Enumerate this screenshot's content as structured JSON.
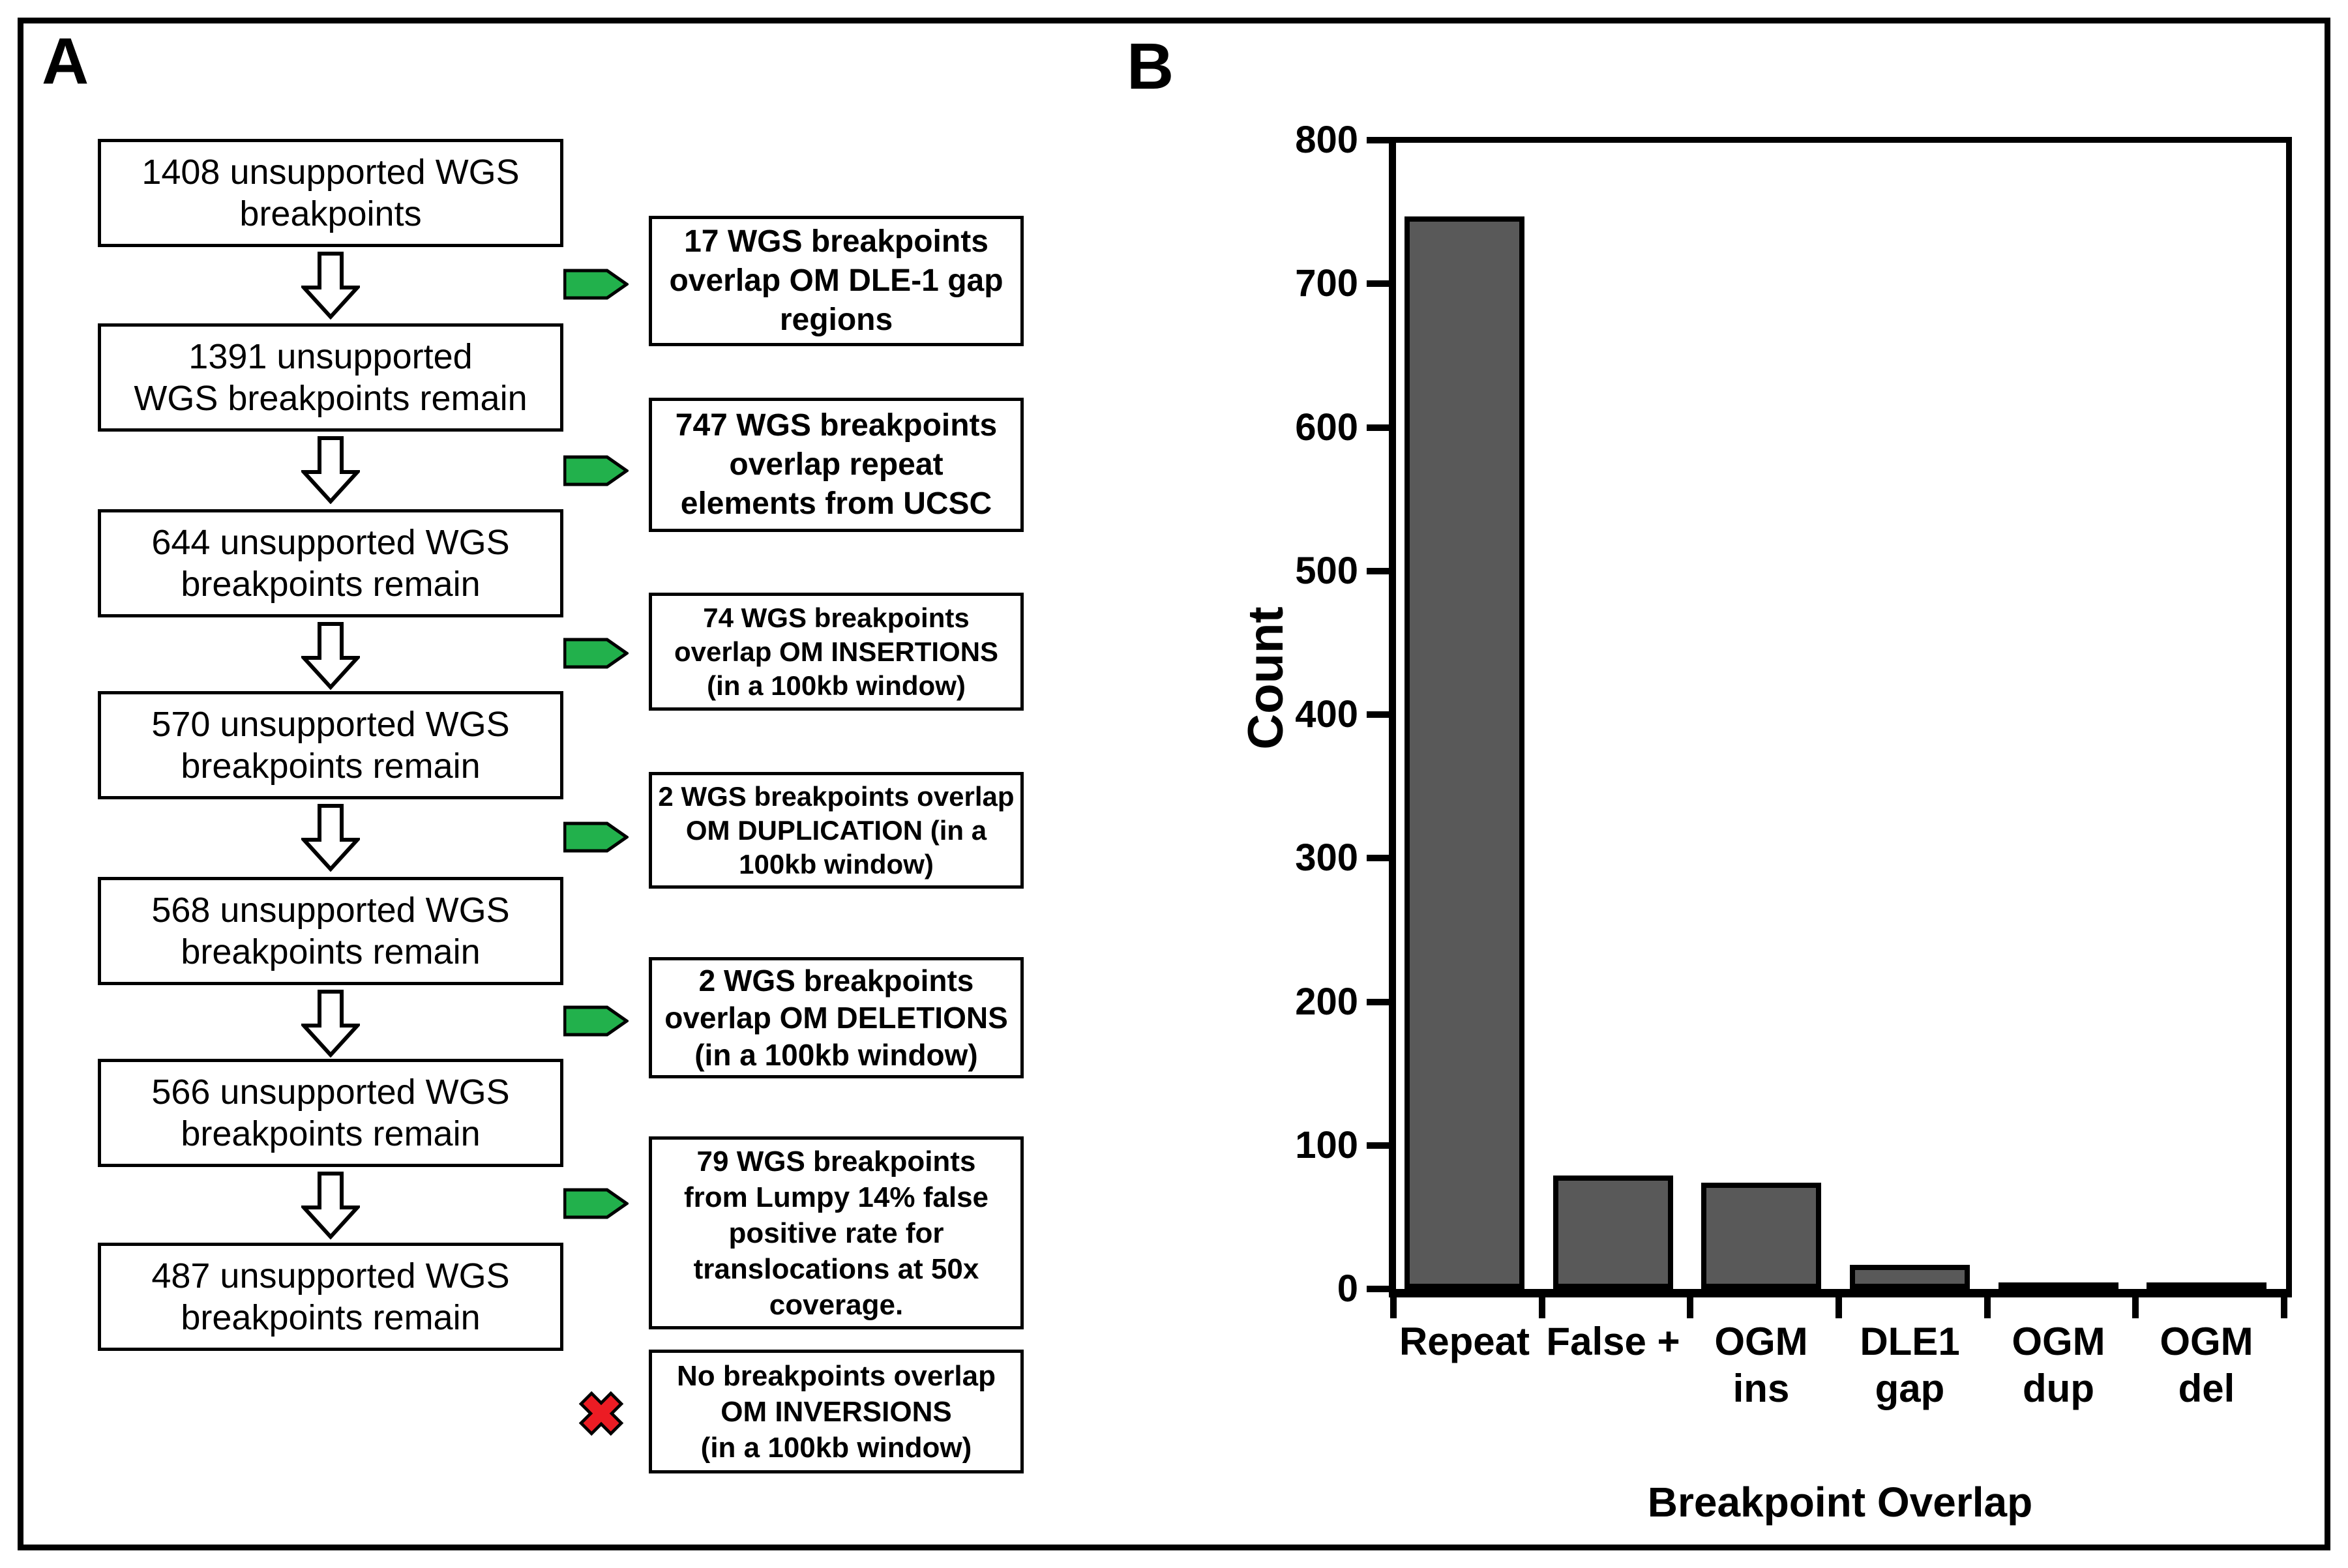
{
  "figure": {
    "panel_a_label": "A",
    "panel_b_label": "B"
  },
  "flowchart": {
    "main_boxes": [
      "1408 unsupported WGS\nbreakpoints",
      "1391 unsupported\nWGS breakpoints remain",
      "644 unsupported WGS\nbreakpoints remain",
      "570 unsupported WGS\nbreakpoints remain",
      "568 unsupported WGS\nbreakpoints remain",
      "566 unsupported WGS\nbreakpoints remain",
      "487 unsupported WGS\nbreakpoints remain"
    ],
    "side_boxes": [
      "17 WGS breakpoints\noverlap OM DLE-1 gap\nregions",
      "747 WGS breakpoints\noverlap repeat\nelements from UCSC",
      "74 WGS breakpoints\noverlap OM INSERTIONS\n(in a 100kb window)",
      "2 WGS breakpoints overlap\nOM DUPLICATION (in a\n100kb window)",
      "2 WGS breakpoints\noverlap OM DELETIONS\n(in a 100kb window)",
      "79 WGS breakpoints\nfrom Lumpy 14% false\npositive rate for\ntranslocations at 50x\ncoverage.",
      "No breakpoints overlap\nOM INVERSIONS\n(in a 100kb window)"
    ],
    "green_arrow_color": "#22B14C",
    "red_x_color": "#EC1C24"
  },
  "chart_data": {
    "type": "bar",
    "categories": [
      "Repeat",
      "False +",
      "OGM ins",
      "DLE1 gap",
      "OGM dup",
      "OGM del"
    ],
    "categories_multiline": [
      "Repeat",
      "False +",
      "OGM\nins",
      "DLE1\ngap",
      "OGM\ndup",
      "OGM\ndel"
    ],
    "values": [
      747,
      79,
      74,
      17,
      2,
      2
    ],
    "title": "",
    "xlabel": "Breakpoint Overlap",
    "ylabel": "Count",
    "ylim": [
      0,
      800
    ],
    "ytick_step": 100,
    "yticks": [
      800,
      700,
      600,
      500,
      400,
      300,
      200,
      100,
      0
    ],
    "bar_color": "#595959",
    "grid": false,
    "legend": null
  }
}
